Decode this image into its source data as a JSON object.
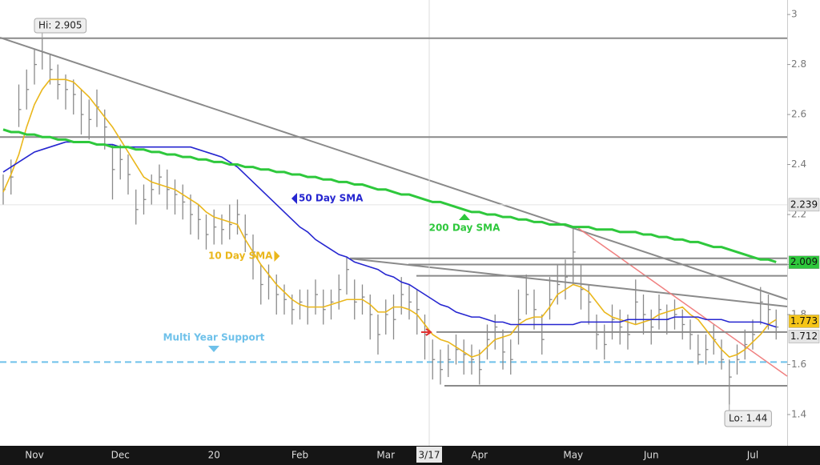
{
  "chart_data": {
    "type": "ohlc",
    "categories": [
      null,
      null,
      null,
      null,
      "Nov",
      null,
      null,
      null,
      null,
      null,
      null,
      null,
      null,
      null,
      null,
      "Dec",
      null,
      null,
      null,
      null,
      null,
      null,
      null,
      null,
      null,
      null,
      null,
      "20",
      null,
      null,
      null,
      null,
      null,
      null,
      null,
      null,
      null,
      null,
      "Feb",
      null,
      null,
      null,
      null,
      null,
      null,
      null,
      null,
      null,
      null,
      "Mar",
      null,
      null,
      null,
      null,
      null,
      null,
      "3/17",
      null,
      null,
      null,
      null,
      "Apr",
      null,
      null,
      null,
      null,
      null,
      null,
      null,
      null,
      null,
      null,
      null,
      "May",
      null,
      null,
      null,
      null,
      null,
      null,
      null,
      null,
      null,
      "Jun",
      null,
      null,
      null,
      null,
      null,
      null,
      null,
      null,
      null,
      null,
      null,
      null,
      "Jul",
      null,
      null,
      null
    ],
    "high": [
      2.36,
      2.42,
      2.72,
      2.78,
      2.86,
      2.905,
      2.84,
      2.8,
      2.76,
      2.74,
      2.7,
      2.66,
      2.7,
      2.62,
      2.48,
      2.48,
      2.44,
      2.3,
      2.32,
      2.36,
      2.4,
      2.38,
      2.34,
      2.32,
      2.28,
      2.24,
      2.2,
      2.22,
      2.2,
      2.24,
      2.26,
      2.2,
      2.12,
      2.0,
      2.0,
      1.96,
      1.92,
      1.88,
      1.9,
      1.9,
      1.94,
      1.9,
      1.9,
      1.96,
      2.03,
      1.94,
      1.92,
      1.88,
      1.8,
      1.86,
      1.88,
      1.95,
      1.92,
      1.9,
      1.8,
      1.7,
      1.66,
      1.68,
      1.72,
      1.7,
      1.68,
      1.66,
      1.76,
      1.8,
      1.74,
      1.7,
      1.9,
      1.96,
      1.9,
      1.8,
      1.95,
      2.0,
      2.02,
      2.15,
      2.0,
      1.92,
      1.8,
      1.76,
      1.84,
      1.82,
      1.8,
      1.94,
      1.88,
      1.82,
      1.88,
      1.84,
      1.86,
      1.82,
      1.78,
      1.72,
      1.72,
      1.76,
      1.7,
      1.62,
      1.68,
      1.74,
      1.78,
      1.91,
      1.88,
      1.82
    ],
    "low": [
      2.24,
      2.28,
      2.55,
      2.62,
      2.72,
      2.78,
      2.72,
      2.66,
      2.62,
      2.6,
      2.52,
      2.5,
      2.55,
      2.46,
      2.26,
      2.34,
      2.28,
      2.16,
      2.2,
      2.24,
      2.28,
      2.22,
      2.2,
      2.18,
      2.12,
      2.1,
      2.06,
      2.08,
      2.08,
      2.1,
      2.12,
      2.05,
      1.94,
      1.84,
      1.86,
      1.8,
      1.8,
      1.76,
      1.78,
      1.76,
      1.8,
      1.76,
      1.78,
      1.82,
      1.88,
      1.78,
      1.8,
      1.7,
      1.64,
      1.72,
      1.7,
      1.8,
      1.78,
      1.72,
      1.62,
      1.54,
      1.52,
      1.55,
      1.6,
      1.56,
      1.56,
      1.52,
      1.62,
      1.66,
      1.58,
      1.56,
      1.68,
      1.8,
      1.74,
      1.64,
      1.78,
      1.84,
      1.86,
      1.92,
      1.82,
      1.76,
      1.66,
      1.62,
      1.7,
      1.68,
      1.66,
      1.76,
      1.72,
      1.68,
      1.74,
      1.72,
      1.74,
      1.7,
      1.66,
      1.6,
      1.6,
      1.64,
      1.58,
      1.44,
      1.56,
      1.62,
      1.66,
      1.76,
      1.74,
      1.7
    ],
    "close": [
      2.3,
      2.35,
      2.62,
      2.7,
      2.8,
      2.85,
      2.78,
      2.72,
      2.7,
      2.68,
      2.6,
      2.58,
      2.63,
      2.55,
      2.38,
      2.42,
      2.36,
      2.22,
      2.26,
      2.3,
      2.35,
      2.3,
      2.28,
      2.25,
      2.2,
      2.18,
      2.12,
      2.15,
      2.14,
      2.16,
      2.2,
      2.12,
      2.05,
      1.92,
      1.95,
      1.88,
      1.86,
      1.82,
      1.85,
      1.83,
      1.88,
      1.82,
      1.85,
      1.9,
      1.98,
      1.85,
      1.87,
      1.8,
      1.72,
      1.8,
      1.78,
      1.88,
      1.85,
      1.82,
      1.72,
      1.62,
      1.58,
      1.62,
      1.66,
      1.64,
      1.62,
      1.58,
      1.7,
      1.75,
      1.65,
      1.62,
      1.78,
      1.88,
      1.82,
      1.7,
      1.86,
      1.92,
      1.95,
      2.05,
      1.9,
      1.85,
      1.72,
      1.68,
      1.78,
      1.75,
      1.72,
      1.85,
      1.8,
      1.75,
      1.82,
      1.78,
      1.8,
      1.76,
      1.72,
      1.64,
      1.66,
      1.7,
      1.62,
      1.55,
      1.62,
      1.68,
      1.72,
      1.85,
      1.82,
      1.75
    ],
    "bar_color": "#8a8a8a",
    "series": [
      {
        "name": "10 Day SMA",
        "color": "#eab71c",
        "values": [
          2.29,
          2.36,
          2.44,
          2.55,
          2.64,
          2.7,
          2.74,
          2.74,
          2.74,
          2.73,
          2.7,
          2.67,
          2.63,
          2.59,
          2.55,
          2.5,
          2.45,
          2.4,
          2.35,
          2.33,
          2.32,
          2.31,
          2.3,
          2.28,
          2.26,
          2.24,
          2.21,
          2.19,
          2.18,
          2.17,
          2.16,
          2.1,
          2.05,
          2.0,
          1.96,
          1.92,
          1.89,
          1.86,
          1.84,
          1.83,
          1.83,
          1.83,
          1.84,
          1.85,
          1.86,
          1.86,
          1.86,
          1.84,
          1.81,
          1.81,
          1.83,
          1.83,
          1.82,
          1.8,
          1.76,
          1.72,
          1.7,
          1.69,
          1.67,
          1.65,
          1.63,
          1.64,
          1.67,
          1.7,
          1.71,
          1.72,
          1.76,
          1.78,
          1.79,
          1.79,
          1.83,
          1.88,
          1.9,
          1.92,
          1.91,
          1.89,
          1.85,
          1.81,
          1.79,
          1.78,
          1.77,
          1.76,
          1.77,
          1.78,
          1.8,
          1.81,
          1.82,
          1.83,
          1.8,
          1.78,
          1.74,
          1.7,
          1.66,
          1.63,
          1.64,
          1.66,
          1.69,
          1.72,
          1.76,
          1.78
        ]
      },
      {
        "name": "50 Day SMA",
        "color": "#2626d0",
        "values": [
          2.37,
          2.39,
          2.41,
          2.43,
          2.45,
          2.46,
          2.47,
          2.48,
          2.49,
          2.49,
          2.49,
          2.49,
          2.48,
          2.48,
          2.48,
          2.47,
          2.47,
          2.47,
          2.47,
          2.47,
          2.47,
          2.47,
          2.47,
          2.47,
          2.47,
          2.46,
          2.45,
          2.44,
          2.43,
          2.41,
          2.39,
          2.36,
          2.33,
          2.3,
          2.27,
          2.24,
          2.21,
          2.18,
          2.15,
          2.13,
          2.1,
          2.08,
          2.06,
          2.04,
          2.03,
          2.01,
          2.0,
          1.99,
          1.98,
          1.96,
          1.95,
          1.93,
          1.92,
          1.9,
          1.88,
          1.86,
          1.84,
          1.83,
          1.81,
          1.8,
          1.79,
          1.79,
          1.78,
          1.77,
          1.77,
          1.76,
          1.76,
          1.76,
          1.76,
          1.76,
          1.76,
          1.76,
          1.76,
          1.76,
          1.77,
          1.77,
          1.77,
          1.77,
          1.77,
          1.77,
          1.78,
          1.78,
          1.78,
          1.78,
          1.78,
          1.78,
          1.79,
          1.79,
          1.79,
          1.79,
          1.78,
          1.78,
          1.78,
          1.77,
          1.77,
          1.77,
          1.77,
          1.77,
          1.76,
          1.75
        ]
      },
      {
        "name": "200 Day SMA",
        "color": "#2ec83c",
        "values": [
          2.54,
          2.53,
          2.53,
          2.52,
          2.52,
          2.51,
          2.51,
          2.5,
          2.5,
          2.49,
          2.49,
          2.49,
          2.48,
          2.48,
          2.47,
          2.47,
          2.47,
          2.46,
          2.46,
          2.45,
          2.45,
          2.44,
          2.44,
          2.43,
          2.43,
          2.42,
          2.42,
          2.41,
          2.41,
          2.4,
          2.4,
          2.39,
          2.39,
          2.38,
          2.38,
          2.37,
          2.37,
          2.36,
          2.36,
          2.35,
          2.35,
          2.34,
          2.34,
          2.33,
          2.33,
          2.32,
          2.32,
          2.31,
          2.3,
          2.3,
          2.29,
          2.28,
          2.28,
          2.27,
          2.26,
          2.25,
          2.25,
          2.24,
          2.23,
          2.22,
          2.21,
          2.21,
          2.2,
          2.2,
          2.19,
          2.19,
          2.18,
          2.18,
          2.17,
          2.17,
          2.16,
          2.16,
          2.16,
          2.15,
          2.15,
          2.15,
          2.14,
          2.14,
          2.14,
          2.13,
          2.13,
          2.13,
          2.12,
          2.12,
          2.11,
          2.11,
          2.1,
          2.1,
          2.09,
          2.09,
          2.08,
          2.07,
          2.07,
          2.06,
          2.05,
          2.04,
          2.03,
          2.02,
          2.02,
          2.01
        ]
      }
    ],
    "ylim": [
      1.275,
      3.058
    ],
    "yticks": [
      3,
      2.8,
      2.6,
      2.4,
      2.2,
      2,
      1.8,
      1.6,
      1.4
    ],
    "hlines": [
      2.905,
      2.51,
      2.025,
      2.0,
      1.955,
      1.73,
      1.515
    ],
    "support": {
      "label": "Multi Year Support",
      "value": 1.61,
      "color": "#6ec1ea"
    },
    "price_labels": [
      {
        "value": 2.239,
        "color": "#e4e4e4"
      },
      {
        "value": 2.009,
        "color": "#2ec83c"
      },
      {
        "value": 1.773,
        "color": "#f5c518"
      },
      {
        "value": 1.712,
        "color": "#e4e4e4"
      }
    ],
    "hi_label": "Hi: 2.905",
    "lo_label": "Lo: 1.44"
  }
}
